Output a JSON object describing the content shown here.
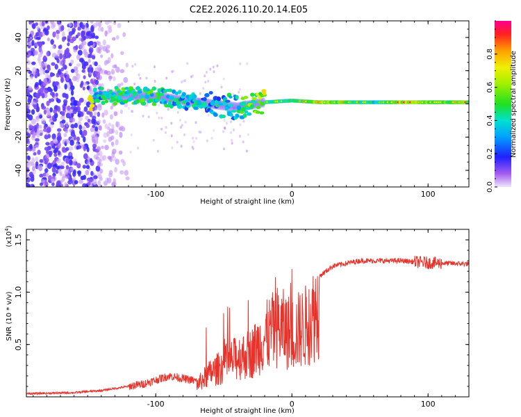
{
  "title": "C2E2.2026.110.20.14.E05",
  "chart_data": [
    {
      "type": "heatmap",
      "name": "spectrogram",
      "xlabel": "Height of straight line (km)",
      "ylabel": "Frequency (Hz)",
      "xlim": [
        -195,
        130
      ],
      "ylim": [
        -50,
        50
      ],
      "xticks": [
        -100,
        0,
        100
      ],
      "xtick_labels": [
        "-100",
        "0",
        "100"
      ],
      "yticks": [
        -40,
        -20,
        0,
        20,
        40
      ],
      "ytick_labels": [
        "-40",
        "-20",
        "0",
        "20",
        "40"
      ],
      "colorbar": {
        "label": "Normalized spectral amplitude",
        "range": [
          0,
          1
        ],
        "ticks": [
          0,
          0.2,
          0.4,
          0.6,
          0.8
        ],
        "tick_labels": [
          "0.0",
          "0.2",
          "0.4",
          "0.6",
          "0.8"
        ]
      },
      "description_points": [
        {
          "x": -145,
          "y": 5,
          "amp": 0.35
        },
        {
          "x": -120,
          "y": 5,
          "amp": 0.45
        },
        {
          "x": -95,
          "y": 4,
          "amp": 0.4
        },
        {
          "x": -80,
          "y": 2,
          "amp": 0.35
        },
        {
          "x": -60,
          "y": 0,
          "amp": 0.3
        },
        {
          "x": -40,
          "y": -2,
          "amp": 0.35
        },
        {
          "x": -20,
          "y": 1,
          "amp": 0.7
        },
        {
          "x": 0,
          "y": 2,
          "amp": 0.6
        },
        {
          "x": 20,
          "y": 1,
          "amp": 0.85
        },
        {
          "x": 60,
          "y": 1,
          "amp": 0.55
        },
        {
          "x": 85,
          "y": 1,
          "amp": 0.9
        },
        {
          "x": 110,
          "y": 1,
          "amp": 0.7
        },
        {
          "x": 128,
          "y": 1,
          "amp": 0.8
        }
      ]
    },
    {
      "type": "line",
      "name": "snr",
      "xlabel": "Height of straight line (km)",
      "ylabel": "SNR (10 * v/v)",
      "scale_label": "(x10",
      "scale_exponent": "4",
      "scale_close": ")",
      "xlim": [
        -195,
        130
      ],
      "ylim": [
        0,
        1.6
      ],
      "xticks": [
        -100,
        0,
        100
      ],
      "xtick_labels": [
        "-100",
        "0",
        "100"
      ],
      "yticks": [
        0.5,
        1.0,
        1.5
      ],
      "ytick_labels": [
        "0.5",
        "1.0",
        "1.5"
      ],
      "color": "#e8322a",
      "envelope": [
        {
          "x": -195,
          "y": 0.03
        },
        {
          "x": -160,
          "y": 0.04
        },
        {
          "x": -140,
          "y": 0.06
        },
        {
          "x": -110,
          "y": 0.12
        },
        {
          "x": -90,
          "y": 0.2
        },
        {
          "x": -70,
          "y": 0.15
        },
        {
          "x": -60,
          "y": 0.3
        },
        {
          "x": -50,
          "y": 0.4
        },
        {
          "x": -40,
          "y": 0.5
        },
        {
          "x": -30,
          "y": 0.55
        },
        {
          "x": -20,
          "y": 0.75
        },
        {
          "x": -10,
          "y": 0.9
        },
        {
          "x": 0,
          "y": 0.8
        },
        {
          "x": 10,
          "y": 0.9
        },
        {
          "x": 20,
          "y": 1.15
        },
        {
          "x": 30,
          "y": 1.25
        },
        {
          "x": 50,
          "y": 1.3
        },
        {
          "x": 80,
          "y": 1.3
        },
        {
          "x": 100,
          "y": 1.28
        },
        {
          "x": 130,
          "y": 1.27
        }
      ]
    }
  ]
}
